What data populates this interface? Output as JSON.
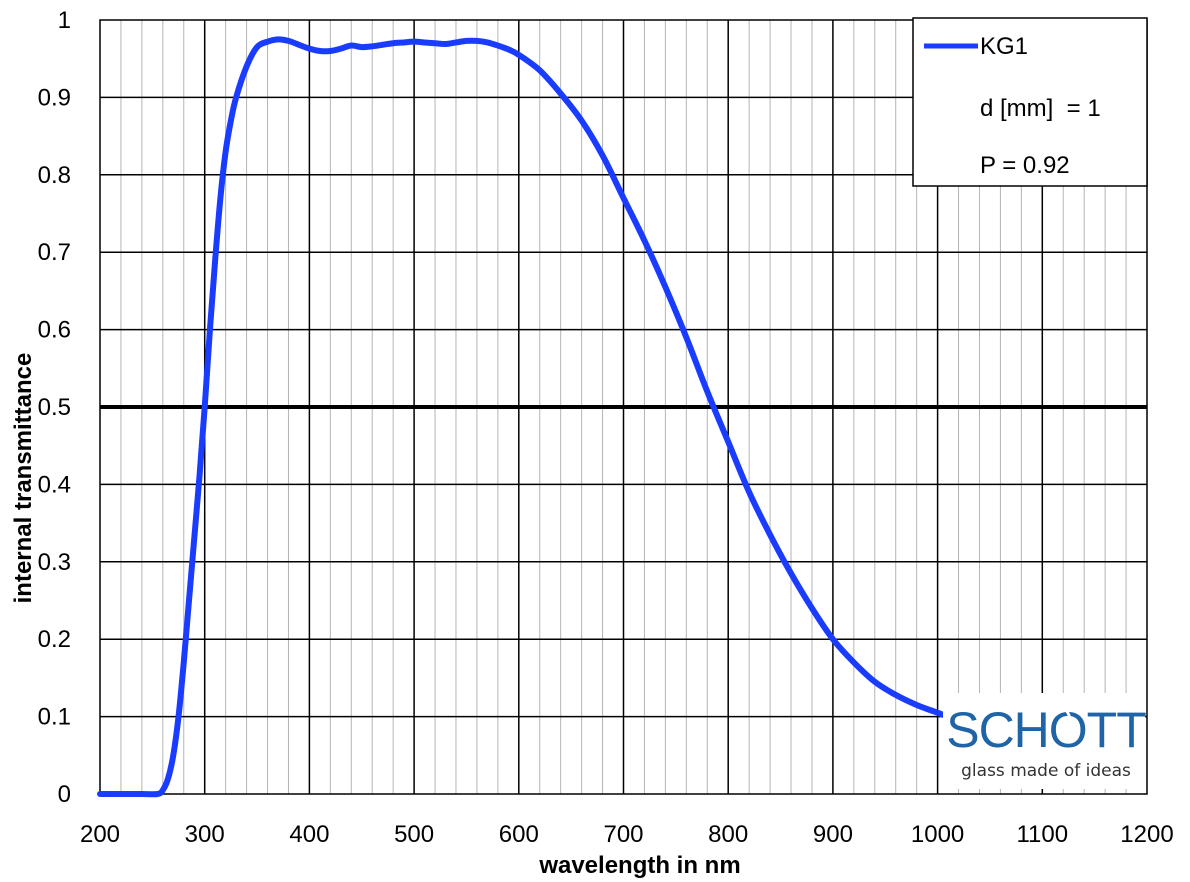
{
  "chart_data": {
    "type": "line",
    "xlabel": "wavelength in nm",
    "ylabel": "internal transmittance",
    "xlim": [
      200,
      1200
    ],
    "ylim": [
      0,
      1
    ],
    "x_ticks": [
      "200",
      "300",
      "400",
      "500",
      "600",
      "700",
      "800",
      "900",
      "1000",
      "1100",
      "1200"
    ],
    "y_ticks": [
      "0",
      "0.1",
      "0.2",
      "0.3",
      "0.4",
      "0.5",
      "0.6",
      "0.7",
      "0.8",
      "0.9",
      "1"
    ],
    "grid": true,
    "minor_grid_x_step": 20,
    "reference_line_y": 0.5,
    "legend_position": "top-right",
    "legend": {
      "series_label": "KG1",
      "thickness_label": "d [mm]  = 1",
      "p_label": "P = 0.92"
    },
    "series": [
      {
        "name": "KG1",
        "color": "#1a3cff",
        "x": [
          200,
          220,
          240,
          255,
          260,
          265,
          270,
          275,
          280,
          285,
          290,
          295,
          300,
          305,
          310,
          315,
          320,
          325,
          330,
          340,
          350,
          360,
          370,
          380,
          390,
          400,
          410,
          420,
          430,
          440,
          450,
          460,
          470,
          480,
          490,
          500,
          510,
          520,
          530,
          540,
          550,
          560,
          570,
          580,
          590,
          600,
          620,
          640,
          660,
          680,
          700,
          720,
          740,
          760,
          780,
          800,
          820,
          840,
          860,
          880,
          900,
          920,
          940,
          960,
          980,
          1000,
          1020,
          1040,
          1060
        ],
        "values": [
          0.0,
          0.0,
          0.0,
          0.0,
          0.005,
          0.02,
          0.05,
          0.1,
          0.17,
          0.25,
          0.33,
          0.41,
          0.5,
          0.6,
          0.69,
          0.77,
          0.83,
          0.87,
          0.9,
          0.94,
          0.965,
          0.972,
          0.975,
          0.973,
          0.968,
          0.963,
          0.96,
          0.96,
          0.963,
          0.967,
          0.965,
          0.966,
          0.968,
          0.97,
          0.971,
          0.972,
          0.971,
          0.97,
          0.969,
          0.971,
          0.973,
          0.973,
          0.971,
          0.967,
          0.962,
          0.955,
          0.935,
          0.905,
          0.87,
          0.825,
          0.77,
          0.715,
          0.655,
          0.59,
          0.52,
          0.455,
          0.39,
          0.335,
          0.285,
          0.24,
          0.2,
          0.17,
          0.145,
          0.128,
          0.115,
          0.105,
          0.095,
          0.088,
          0.082
        ]
      }
    ]
  },
  "logo": {
    "word": "SCHOTT",
    "tagline": "glass made of ideas"
  }
}
